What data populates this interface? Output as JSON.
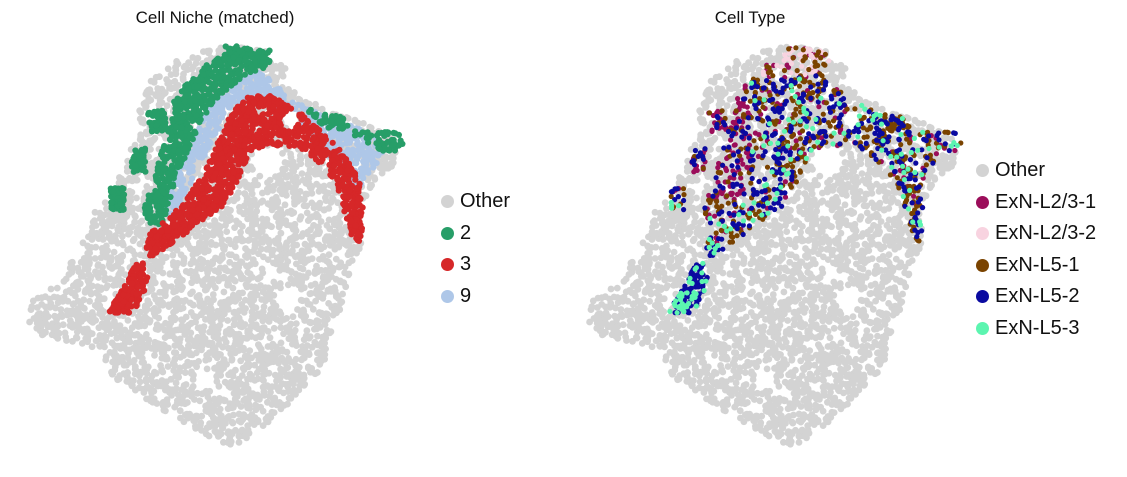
{
  "chart_data": [
    {
      "type": "scatter",
      "title": "Cell Niche (matched)",
      "legend_position": "right",
      "axes": "off",
      "background_category": "Other",
      "categories": [
        {
          "label": "Other",
          "color": "#d3d3d3"
        },
        {
          "label": "2",
          "color": "#279e68"
        },
        {
          "label": "3",
          "color": "#d62728"
        },
        {
          "label": "9",
          "color": "#aec7e8"
        }
      ]
    },
    {
      "type": "scatter",
      "title": "Cell Type",
      "legend_position": "right",
      "axes": "off",
      "background_category": "Other",
      "categories": [
        {
          "label": "Other",
          "color": "#d3d3d3"
        },
        {
          "label": "ExN-L2/3-1",
          "color": "#9b0d5a"
        },
        {
          "label": "ExN-L2/3-2",
          "color": "#f8d3e0"
        },
        {
          "label": "ExN-L5-1",
          "color": "#7a4300"
        },
        {
          "label": "ExN-L5-2",
          "color": "#0a0aa0"
        },
        {
          "label": "ExN-L5-3",
          "color": "#5cf5b0"
        }
      ]
    }
  ]
}
